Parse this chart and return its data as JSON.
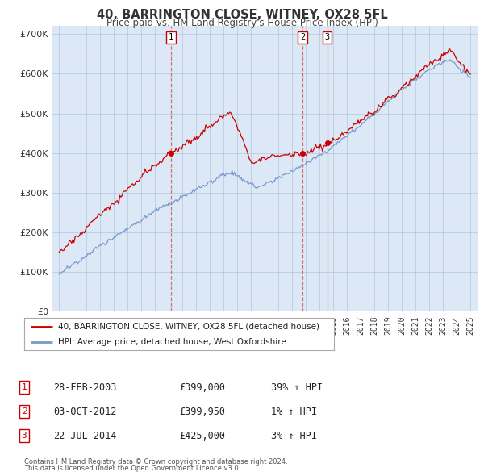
{
  "title": "40, BARRINGTON CLOSE, WITNEY, OX28 5FL",
  "subtitle": "Price paid vs. HM Land Registry's House Price Index (HPI)",
  "legend_line1": "40, BARRINGTON CLOSE, WITNEY, OX28 5FL (detached house)",
  "legend_line2": "HPI: Average price, detached house, West Oxfordshire",
  "footer1": "Contains HM Land Registry data © Crown copyright and database right 2024.",
  "footer2": "This data is licensed under the Open Government Licence v3.0.",
  "transactions": [
    {
      "num": 1,
      "date": "28-FEB-2003",
      "price": "£399,000",
      "hpi": "39% ↑ HPI",
      "year": 2003.15
    },
    {
      "num": 2,
      "date": "03-OCT-2012",
      "price": "£399,950",
      "hpi": "1% ↑ HPI",
      "year": 2012.75
    },
    {
      "num": 3,
      "date": "22-JUL-2014",
      "price": "£425,000",
      "hpi": "3% ↑ HPI",
      "year": 2014.55
    }
  ],
  "transaction_values": [
    399000,
    399950,
    425000
  ],
  "red_line_color": "#cc0000",
  "blue_line_color": "#7799cc",
  "vline_color": "#cc6666",
  "dot_color": "#cc0000",
  "ylim": [
    0,
    720000
  ],
  "yticks": [
    0,
    100000,
    200000,
    300000,
    400000,
    500000,
    600000,
    700000
  ],
  "xlim_start": 1994.5,
  "xlim_end": 2025.5,
  "chart_bg": "#dce8f5",
  "background_color": "#ffffff",
  "grid_color": "#b0c8e0"
}
